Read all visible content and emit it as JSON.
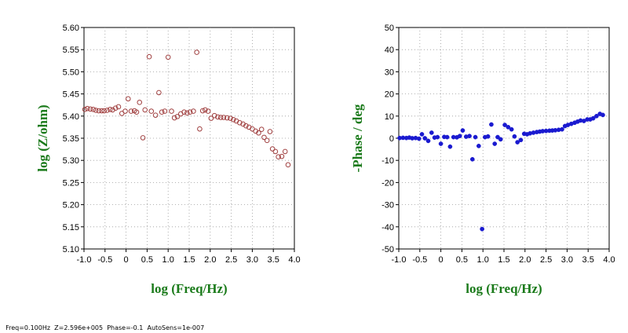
{
  "chart_data": [
    {
      "type": "scatter",
      "xlabel": "log (Freq/Hz)",
      "ylabel": "log (Z/ohm)",
      "xlim": [
        -1.0,
        4.0
      ],
      "ylim": [
        5.1,
        5.6
      ],
      "xticks": [
        "-1.0",
        "-0.5",
        "0",
        "0.5",
        "1.0",
        "1.5",
        "2.0",
        "2.5",
        "3.0",
        "3.5",
        "4.0"
      ],
      "yticks": [
        "5.10",
        "5.15",
        "5.20",
        "5.25",
        "5.30",
        "5.35",
        "5.40",
        "5.45",
        "5.50",
        "5.55",
        "5.60"
      ],
      "grid": true,
      "marker": "open-circle",
      "color": "#a04040",
      "points": [
        [
          -0.98,
          5.415
        ],
        [
          -0.92,
          5.417
        ],
        [
          -0.85,
          5.416
        ],
        [
          -0.78,
          5.415
        ],
        [
          -0.72,
          5.413
        ],
        [
          -0.65,
          5.412
        ],
        [
          -0.58,
          5.412
        ],
        [
          -0.52,
          5.412
        ],
        [
          -0.45,
          5.413
        ],
        [
          -0.38,
          5.415
        ],
        [
          -0.32,
          5.414
        ],
        [
          -0.25,
          5.418
        ],
        [
          -0.18,
          5.421
        ],
        [
          -0.1,
          5.406
        ],
        [
          -0.02,
          5.411
        ],
        [
          0.05,
          5.439
        ],
        [
          0.12,
          5.411
        ],
        [
          0.2,
          5.412
        ],
        [
          0.25,
          5.409
        ],
        [
          0.32,
          5.431
        ],
        [
          0.4,
          5.351
        ],
        [
          0.45,
          5.414
        ],
        [
          0.55,
          5.534
        ],
        [
          0.6,
          5.411
        ],
        [
          0.7,
          5.402
        ],
        [
          0.78,
          5.453
        ],
        [
          0.85,
          5.409
        ],
        [
          0.92,
          5.411
        ],
        [
          1.0,
          5.533
        ],
        [
          1.08,
          5.411
        ],
        [
          1.15,
          5.396
        ],
        [
          1.22,
          5.399
        ],
        [
          1.3,
          5.405
        ],
        [
          1.38,
          5.409
        ],
        [
          1.45,
          5.407
        ],
        [
          1.52,
          5.409
        ],
        [
          1.6,
          5.411
        ],
        [
          1.68,
          5.544
        ],
        [
          1.75,
          5.371
        ],
        [
          1.82,
          5.412
        ],
        [
          1.88,
          5.414
        ],
        [
          1.95,
          5.411
        ],
        [
          2.02,
          5.395
        ],
        [
          2.1,
          5.401
        ],
        [
          2.18,
          5.398
        ],
        [
          2.25,
          5.397
        ],
        [
          2.32,
          5.397
        ],
        [
          2.4,
          5.396
        ],
        [
          2.48,
          5.395
        ],
        [
          2.55,
          5.392
        ],
        [
          2.62,
          5.389
        ],
        [
          2.7,
          5.385
        ],
        [
          2.78,
          5.382
        ],
        [
          2.85,
          5.378
        ],
        [
          2.92,
          5.375
        ],
        [
          3.0,
          5.371
        ],
        [
          3.08,
          5.366
        ],
        [
          3.15,
          5.362
        ],
        [
          3.22,
          5.37
        ],
        [
          3.28,
          5.352
        ],
        [
          3.35,
          5.345
        ],
        [
          3.42,
          5.365
        ],
        [
          3.48,
          5.326
        ],
        [
          3.55,
          5.32
        ],
        [
          3.62,
          5.308
        ],
        [
          3.7,
          5.309
        ],
        [
          3.78,
          5.32
        ],
        [
          3.85,
          5.29
        ]
      ]
    },
    {
      "type": "scatter",
      "xlabel": "log (Freq/Hz)",
      "ylabel": "-Phase / deg",
      "xlim": [
        -1.0,
        4.0
      ],
      "ylim": [
        -50,
        50
      ],
      "xticks": [
        "-1.0",
        "-0.5",
        "0",
        "0.5",
        "1.0",
        "1.5",
        "2.0",
        "2.5",
        "3.0",
        "3.5",
        "4.0"
      ],
      "yticks": [
        "-50",
        "-40",
        "-30",
        "-20",
        "-10",
        "0",
        "10",
        "20",
        "30",
        "40",
        "50"
      ],
      "grid": true,
      "marker": "filled-circle",
      "color": "#1a1ad0",
      "points": [
        [
          -0.98,
          0.1
        ],
        [
          -0.9,
          0.2
        ],
        [
          -0.82,
          0.1
        ],
        [
          -0.75,
          0.3
        ],
        [
          -0.68,
          0.0
        ],
        [
          -0.6,
          0.1
        ],
        [
          -0.52,
          -0.2
        ],
        [
          -0.45,
          1.8
        ],
        [
          -0.38,
          0.0
        ],
        [
          -0.3,
          -1.2
        ],
        [
          -0.22,
          2.5
        ],
        [
          -0.15,
          0.3
        ],
        [
          -0.08,
          0.5
        ],
        [
          0.0,
          -2.5
        ],
        [
          0.08,
          0.6
        ],
        [
          0.15,
          0.5
        ],
        [
          0.22,
          -3.8
        ],
        [
          0.3,
          0.5
        ],
        [
          0.38,
          0.4
        ],
        [
          0.45,
          1.0
        ],
        [
          0.52,
          3.5
        ],
        [
          0.6,
          0.7
        ],
        [
          0.68,
          1.0
        ],
        [
          0.75,
          -9.5
        ],
        [
          0.82,
          0.5
        ],
        [
          0.9,
          -3.5
        ],
        [
          0.98,
          -41.0
        ],
        [
          1.05,
          0.5
        ],
        [
          1.12,
          0.8
        ],
        [
          1.2,
          6.2
        ],
        [
          1.28,
          -2.5
        ],
        [
          1.35,
          0.5
        ],
        [
          1.42,
          -0.5
        ],
        [
          1.52,
          6.0
        ],
        [
          1.6,
          5.0
        ],
        [
          1.68,
          4.0
        ],
        [
          1.75,
          0.8
        ],
        [
          1.82,
          -1.8
        ],
        [
          1.9,
          -0.8
        ],
        [
          1.98,
          2.0
        ],
        [
          2.05,
          1.8
        ],
        [
          2.12,
          2.2
        ],
        [
          2.2,
          2.5
        ],
        [
          2.28,
          2.8
        ],
        [
          2.35,
          3.0
        ],
        [
          2.42,
          3.2
        ],
        [
          2.5,
          3.3
        ],
        [
          2.58,
          3.4
        ],
        [
          2.65,
          3.5
        ],
        [
          2.72,
          3.6
        ],
        [
          2.8,
          3.8
        ],
        [
          2.88,
          4.0
        ],
        [
          2.95,
          5.5
        ],
        [
          3.02,
          6.0
        ],
        [
          3.1,
          6.5
        ],
        [
          3.18,
          7.0
        ],
        [
          3.25,
          7.5
        ],
        [
          3.32,
          8.0
        ],
        [
          3.4,
          7.8
        ],
        [
          3.48,
          8.5
        ],
        [
          3.55,
          8.5
        ],
        [
          3.62,
          9.0
        ],
        [
          3.7,
          10.0
        ],
        [
          3.78,
          11.0
        ],
        [
          3.85,
          10.5
        ]
      ]
    }
  ],
  "status": {
    "text": "Freq=0.100Hz  Z=2.596e+005  Phase=-0.1  AutoSens=1e-007"
  }
}
